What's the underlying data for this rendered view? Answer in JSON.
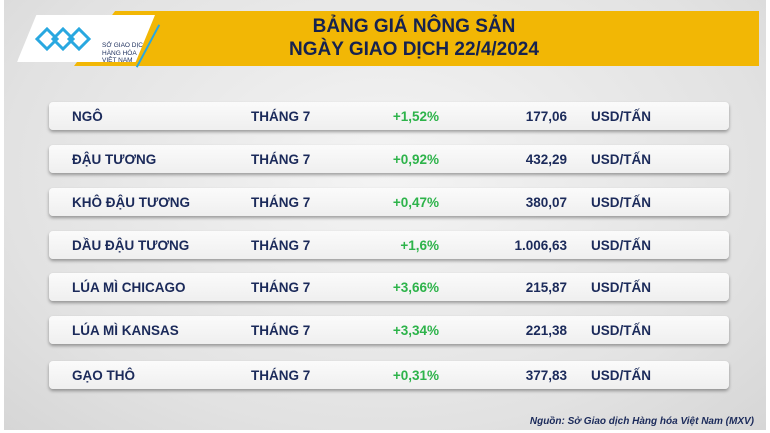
{
  "logo": {
    "text": [
      "SỞ GIAO DỊCH",
      "HÀNG HÓA",
      "VIỆT NAM"
    ]
  },
  "header": {
    "title_line1": "BẢNG GIÁ NÔNG SẢN",
    "title_line2": "NGÀY GIAO DỊCH 22/4/2024"
  },
  "colors": {
    "banner": "#f2b705",
    "text": "#1b2a5a",
    "positive": "#2db34a",
    "logo_blue": "#29a8e0"
  },
  "rows": [
    {
      "name": "NGÔ",
      "month": "THÁNG 7",
      "change": "+1,52%",
      "price": "177,06",
      "unit": "USD/TẤN"
    },
    {
      "name": "ĐẬU TƯƠNG",
      "month": "THÁNG 7",
      "change": "+0,92%",
      "price": "432,29",
      "unit": "USD/TẤN"
    },
    {
      "name": "KHÔ ĐẬU TƯƠNG",
      "month": "THÁNG 7",
      "change": "+0,47%",
      "price": "380,07",
      "unit": "USD/TẤN"
    },
    {
      "name": "DẦU ĐẬU TƯƠNG",
      "month": "THÁNG 7",
      "change": "+1,6%",
      "price": "1.006,63",
      "unit": "USD/TẤN"
    },
    {
      "name": "LÚA MÌ CHICAGO",
      "month": "THÁNG 7",
      "change": "+3,66%",
      "price": "215,87",
      "unit": "USD/TẤN"
    },
    {
      "name": "LÚA MÌ KANSAS",
      "month": "THÁNG 7",
      "change": "+3,34%",
      "price": "221,38",
      "unit": "USD/TẤN"
    },
    {
      "name": "GẠO THÔ",
      "month": "THÁNG 7",
      "change": "+0,31%",
      "price": "377,83",
      "unit": "USD/TẤN"
    }
  ],
  "source": "Nguồn: Sở Giao dịch Hàng hóa Việt Nam (MXV)"
}
